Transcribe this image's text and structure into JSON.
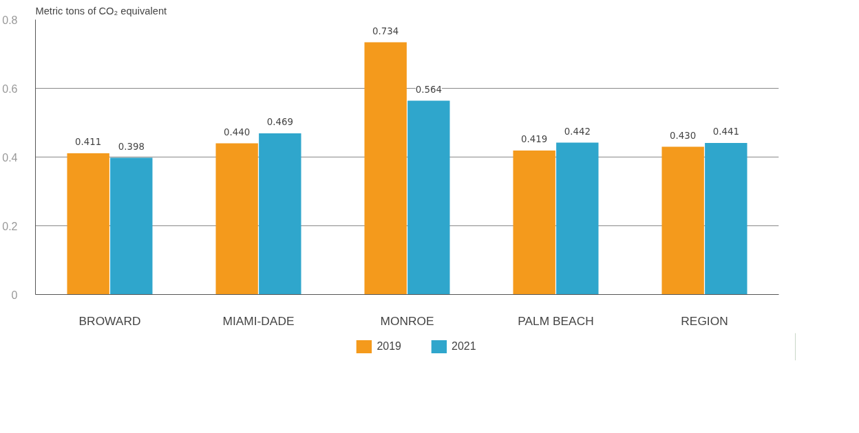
{
  "chart_data": {
    "type": "bar",
    "ylabel": "Metric tons of CO₂ equivalent",
    "categories": [
      "BROWARD",
      "MIAMI-DADE",
      "MONROE",
      "PALM BEACH",
      "REGION"
    ],
    "series": [
      {
        "name": "2019",
        "color": "#f49a1c",
        "values": [
          0.411,
          0.44,
          0.734,
          0.419,
          0.43
        ],
        "value_labels": [
          "0.411",
          "0.440",
          "0.734",
          "0.419",
          "0.430"
        ]
      },
      {
        "name": "2021",
        "color": "#2fa6cc",
        "values": [
          0.398,
          0.469,
          0.564,
          0.442,
          0.441
        ],
        "value_labels": [
          "0.398",
          "0.469",
          "0.564",
          "0.442",
          "0.441"
        ]
      }
    ],
    "ylim": [
      0,
      0.8
    ],
    "yticks": [
      0,
      0.2,
      0.4,
      0.6,
      0.8
    ],
    "grid": "y",
    "legend": "bottom"
  }
}
